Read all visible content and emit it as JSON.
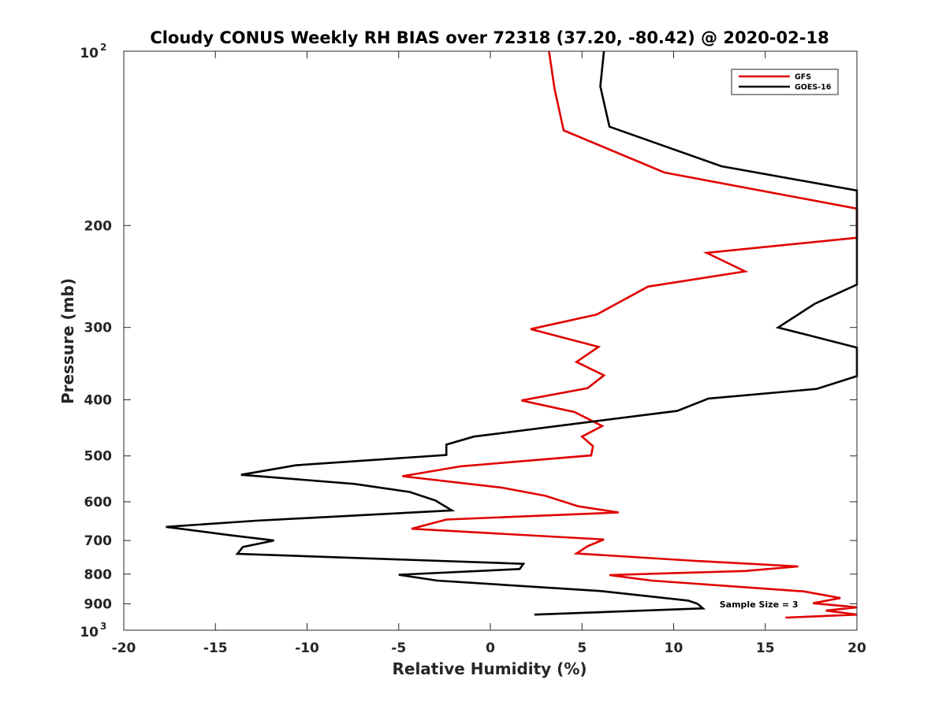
{
  "chart_data": {
    "type": "line",
    "title": "Cloudy CONUS Weekly RH BIAS over 72318 (37.20, -80.42) @ 2020-02-18",
    "xlabel": "Relative Humidity (%)",
    "ylabel": "Pressure (mb)",
    "xlim": [
      -20,
      20
    ],
    "ylim": [
      100,
      1000
    ],
    "y_scale": "log",
    "y_reversed": true,
    "grid": false,
    "legend_position": "top-right",
    "x_ticks": [
      {
        "value": -20,
        "label": "-20"
      },
      {
        "value": -15,
        "label": "-15"
      },
      {
        "value": -10,
        "label": "-10"
      },
      {
        "value": -5,
        "label": "-5"
      },
      {
        "value": 0,
        "label": "0"
      },
      {
        "value": 5,
        "label": "5"
      },
      {
        "value": 10,
        "label": "10"
      },
      {
        "value": 15,
        "label": "15"
      },
      {
        "value": 20,
        "label": "20"
      }
    ],
    "y_ticks": [
      {
        "value": 100,
        "base": "10",
        "exp": "2"
      },
      {
        "value": 200,
        "label": "200"
      },
      {
        "value": 300,
        "label": "300"
      },
      {
        "value": 400,
        "label": "400"
      },
      {
        "value": 500,
        "label": "500"
      },
      {
        "value": 600,
        "label": "600"
      },
      {
        "value": 700,
        "label": "700"
      },
      {
        "value": 800,
        "label": "800"
      },
      {
        "value": 900,
        "label": "900"
      },
      {
        "value": 1000,
        "base": "10",
        "exp": "3"
      }
    ],
    "series": [
      {
        "name": "GFS",
        "color": "#e00000",
        "points": [
          [
            3.2,
            100
          ],
          [
            3.5,
            116
          ],
          [
            4.0,
            137
          ],
          [
            9.5,
            162
          ],
          [
            20,
            187
          ],
          [
            20,
            210
          ],
          [
            11.8,
            223
          ],
          [
            13.9,
            240
          ],
          [
            8.6,
            255
          ],
          [
            5.8,
            285
          ],
          [
            2.2,
            302
          ],
          [
            5.9,
            324
          ],
          [
            4.7,
            344
          ],
          [
            6.2,
            363
          ],
          [
            5.3,
            382
          ],
          [
            1.7,
            401
          ],
          [
            4.6,
            420
          ],
          [
            6.1,
            444
          ],
          [
            5.0,
            463
          ],
          [
            5.6,
            481
          ],
          [
            5.5,
            499
          ],
          [
            -1.6,
            521
          ],
          [
            -4.8,
            542
          ],
          [
            0.6,
            567
          ],
          [
            3.0,
            586
          ],
          [
            4.8,
            611
          ],
          [
            7.0,
            626
          ],
          [
            -2.4,
            644
          ],
          [
            -4.3,
            668
          ],
          [
            6.2,
            697
          ],
          [
            5.3,
            716
          ],
          [
            4.7,
            737
          ],
          [
            11.2,
            759
          ],
          [
            16.8,
            776
          ],
          [
            13.9,
            790
          ],
          [
            6.5,
            803
          ],
          [
            8.8,
            821
          ],
          [
            17.1,
            857
          ],
          [
            19.1,
            880
          ],
          [
            17.6,
            898
          ],
          [
            20,
            913
          ],
          [
            18.3,
            925
          ],
          [
            20,
            940
          ],
          [
            16.1,
            951
          ]
        ]
      },
      {
        "name": "GOES-16",
        "color": "#000000",
        "points": [
          [
            6.2,
            100
          ],
          [
            6.0,
            115
          ],
          [
            6.5,
            135
          ],
          [
            12.6,
            158
          ],
          [
            20,
            174
          ],
          [
            20,
            253
          ],
          [
            17.7,
            273
          ],
          [
            15.7,
            300
          ],
          [
            20,
            325
          ],
          [
            20,
            345
          ],
          [
            20,
            364
          ],
          [
            17.8,
            383
          ],
          [
            11.9,
            398
          ],
          [
            10.2,
            418
          ],
          [
            -0.9,
            463
          ],
          [
            -2.4,
            478
          ],
          [
            -2.4,
            498
          ],
          [
            -10.6,
            519
          ],
          [
            -13.6,
            539
          ],
          [
            -7.4,
            559
          ],
          [
            -4.4,
            577
          ],
          [
            -3.0,
            597
          ],
          [
            -2.1,
            621
          ],
          [
            -12.8,
            647
          ],
          [
            -17.7,
            663
          ],
          [
            -14.1,
            686
          ],
          [
            -11.8,
            700
          ],
          [
            -13.5,
            718
          ],
          [
            -13.8,
            738
          ],
          [
            1.8,
            768
          ],
          [
            1.6,
            784
          ],
          [
            -5.0,
            802
          ],
          [
            -2.9,
            821
          ],
          [
            6.1,
            856
          ],
          [
            10.8,
            889
          ],
          [
            11.3,
            900
          ],
          [
            11.6,
            917
          ],
          [
            2.4,
            940
          ]
        ]
      }
    ],
    "annotations": [
      {
        "text": "Sample Size = 3",
        "x": 15.0,
        "y": 900
      }
    ]
  }
}
